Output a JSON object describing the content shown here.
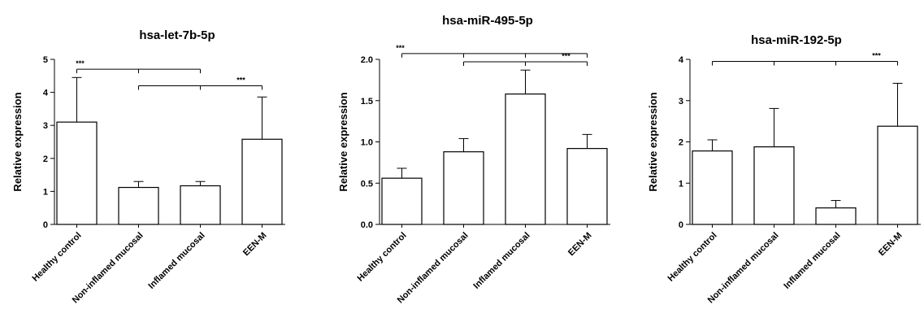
{
  "chart_data": [
    {
      "type": "bar",
      "title": "hsa-let-7b-5p",
      "ylabel": "Relative  expression",
      "categories": [
        "Healthy control",
        "Non-inflamed mucosal",
        "Inflamed mucosal",
        "EEN-M"
      ],
      "values": [
        3.1,
        1.12,
        1.17,
        2.58
      ],
      "errors": [
        1.35,
        0.18,
        0.13,
        1.28
      ],
      "ylim": [
        0,
        5
      ],
      "yticks": [
        "0",
        "1",
        "2",
        "3",
        "4",
        "5"
      ],
      "significance": [
        {
          "from": 0,
          "to": 2,
          "label": "***",
          "y": 4.7
        },
        {
          "from": 1,
          "to": 3,
          "label": "***",
          "y": 4.2
        }
      ]
    },
    {
      "type": "bar",
      "title": "hsa-miR-495-5p",
      "ylabel": "Relative  expression",
      "categories": [
        "Healthy control",
        "Non-inflamed mucosal",
        "Inflamed mucosal",
        "EEN-M"
      ],
      "values": [
        0.56,
        0.88,
        1.58,
        0.92
      ],
      "errors": [
        0.12,
        0.16,
        0.29,
        0.17
      ],
      "ylim": [
        0,
        2.0
      ],
      "yticks": [
        "0.0",
        "0.5",
        "1.0",
        "1.5",
        "2.0"
      ],
      "significance": [
        {
          "from": 0,
          "to": 3,
          "label": "***",
          "y": 2.07
        },
        {
          "from": 1,
          "to": 3,
          "label": "***",
          "y": 1.97
        }
      ]
    },
    {
      "type": "bar",
      "title": "hsa-miR-192-5p",
      "ylabel": "Relative  expression",
      "categories": [
        "Healthy control",
        "Non-inflamed mucosal",
        "Inflamed mucosal",
        "EEN-M"
      ],
      "values": [
        1.78,
        1.88,
        0.4,
        2.38
      ],
      "errors": [
        0.27,
        0.93,
        0.18,
        1.04
      ],
      "ylim": [
        0,
        4
      ],
      "yticks": [
        "0",
        "1",
        "2",
        "3",
        "4"
      ],
      "significance": [
        {
          "from": 0,
          "to": 3,
          "label": "***",
          "y": 3.95
        }
      ]
    }
  ]
}
